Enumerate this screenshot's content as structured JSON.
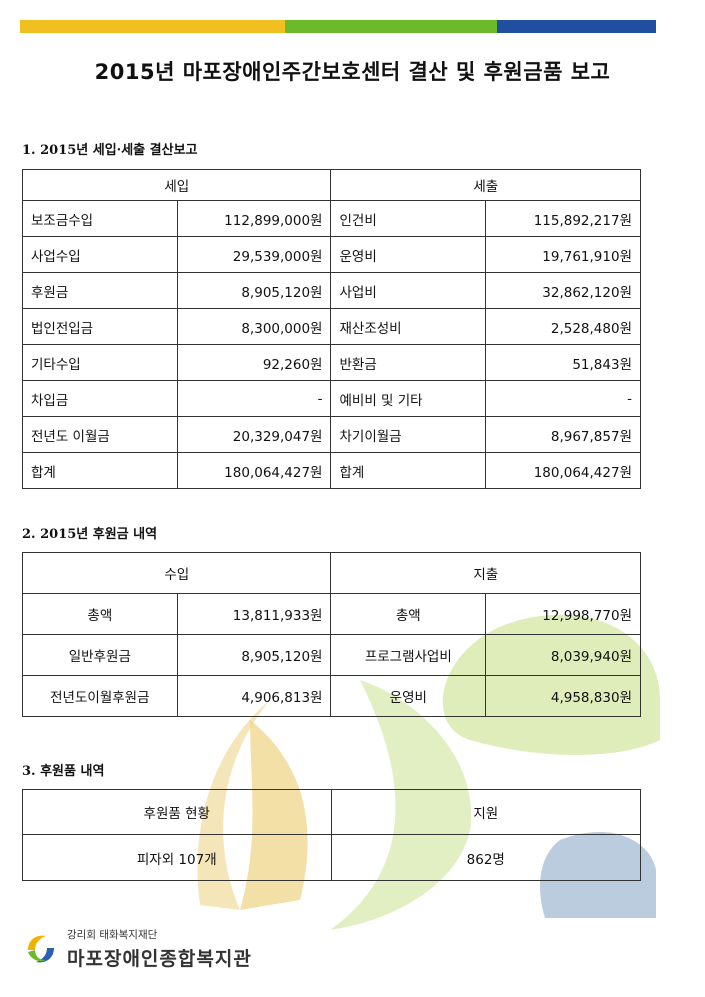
{
  "title": "2015년 마포장애인주간보호센터 결산 및 후원금품 보고",
  "section1": {
    "heading": "1. 2015년 세입·세출 결산보고",
    "income_header": "세입",
    "expense_header": "세출",
    "rows": [
      {
        "income_label": "보조금수입",
        "income_value": "112,899,000원",
        "expense_label": "인건비",
        "expense_value": "115,892,217원"
      },
      {
        "income_label": "사업수입",
        "income_value": "29,539,000원",
        "expense_label": "운영비",
        "expense_value": "19,761,910원"
      },
      {
        "income_label": "후원금",
        "income_value": "8,905,120원",
        "expense_label": "사업비",
        "expense_value": "32,862,120원"
      },
      {
        "income_label": "법인전입금",
        "income_value": "8,300,000원",
        "expense_label": "재산조성비",
        "expense_value": "2,528,480원"
      },
      {
        "income_label": "기타수입",
        "income_value": "92,260원",
        "expense_label": "반환금",
        "expense_value": "51,843원"
      },
      {
        "income_label": "차입금",
        "income_value": "-",
        "expense_label": "예비비 및 기타",
        "expense_value": "-"
      },
      {
        "income_label": "전년도 이월금",
        "income_value": "20,329,047원",
        "expense_label": "차기이월금",
        "expense_value": "8,967,857원"
      },
      {
        "income_label": "합계",
        "income_value": "180,064,427원",
        "expense_label": "합계",
        "expense_value": "180,064,427원"
      }
    ]
  },
  "section2": {
    "heading": "2. 2015년 후원금 내역",
    "income_header": "수입",
    "expense_header": "지출",
    "rows": [
      {
        "income_label": "총액",
        "income_value": "13,811,933원",
        "expense_label": "총액",
        "expense_value": "12,998,770원"
      },
      {
        "income_label": "일반후원금",
        "income_value": "8,905,120원",
        "expense_label": "프로그램사업비",
        "expense_value": "8,039,940원"
      },
      {
        "income_label": "전년도이월후원금",
        "income_value": "4,906,813원",
        "expense_label": "운영비",
        "expense_value": "4,958,830원"
      }
    ]
  },
  "section3": {
    "heading": "3. 후원품 내역",
    "col1_header": "후원품 현황",
    "col2_header": "지원",
    "item": "피자외 107개",
    "support": "862명"
  },
  "footer": {
    "subtitle": "강리회 태화복지재단",
    "name": "마포장애인종합복지관"
  },
  "colors": {
    "bar_yellow": "#f0c020",
    "bar_green": "#6cb92b",
    "bar_blue": "#1f4f9e"
  }
}
